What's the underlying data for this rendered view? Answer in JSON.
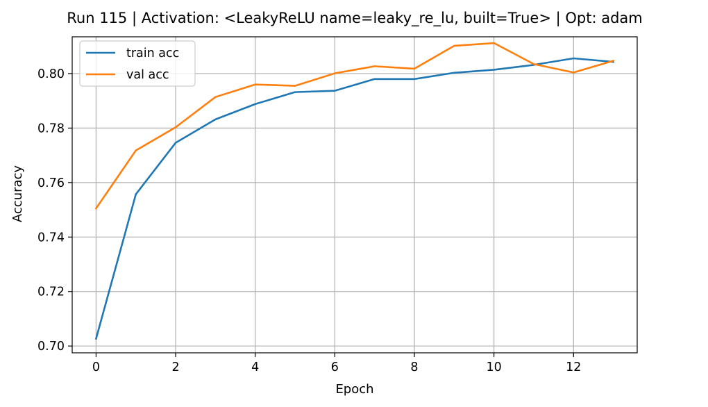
{
  "chart_data": {
    "type": "line",
    "title": "Run 115 | Activation: <LeakyReLU name=leaky_re_lu, built=True> | Opt: adam",
    "xlabel": "Epoch",
    "ylabel": "Accuracy",
    "x": [
      0,
      1,
      2,
      3,
      4,
      5,
      6,
      7,
      8,
      9,
      10,
      11,
      12,
      13
    ],
    "xlim": [
      -0.6,
      13.6
    ],
    "ylim": [
      0.6975,
      0.8135
    ],
    "xticks": [
      0,
      2,
      4,
      6,
      8,
      10,
      12
    ],
    "yticks": [
      0.7,
      0.72,
      0.74,
      0.76,
      0.78,
      0.8
    ],
    "xtick_labels": [
      "0",
      "2",
      "4",
      "6",
      "8",
      "10",
      "12"
    ],
    "ytick_labels": [
      "0.70",
      "0.72",
      "0.74",
      "0.76",
      "0.78",
      "0.80"
    ],
    "grid": true,
    "legend_position": "top-left",
    "series": [
      {
        "name": "train acc",
        "color": "#1f77b4",
        "values": [
          0.7027,
          0.7557,
          0.7746,
          0.7832,
          0.7888,
          0.7932,
          0.7937,
          0.798,
          0.798,
          0.8003,
          0.8014,
          0.8032,
          0.8056,
          0.8043
        ]
      },
      {
        "name": "val acc",
        "color": "#ff7f0e",
        "values": [
          0.7505,
          0.7718,
          0.7803,
          0.7914,
          0.796,
          0.7955,
          0.8001,
          0.8027,
          0.8018,
          0.8102,
          0.8112,
          0.8035,
          0.8004,
          0.8047
        ]
      }
    ]
  }
}
